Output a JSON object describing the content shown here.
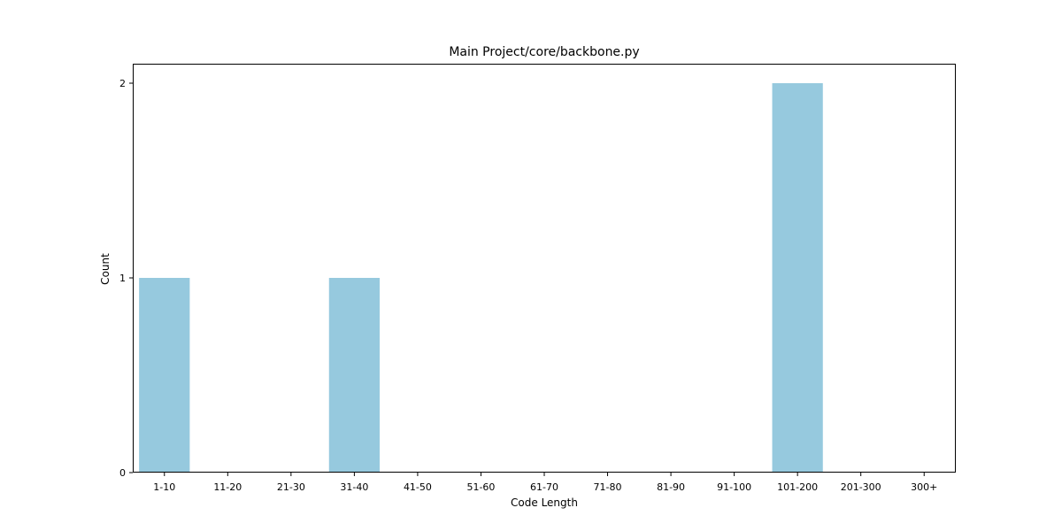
{
  "chart_data": {
    "type": "bar",
    "title": "Main Project/core/backbone.py",
    "xlabel": "Code Length",
    "ylabel": "Count",
    "categories": [
      "1-10",
      "11-20",
      "21-30",
      "31-40",
      "41-50",
      "51-60",
      "61-70",
      "71-80",
      "81-90",
      "91-100",
      "101-200",
      "201-300",
      "300+"
    ],
    "values": [
      1,
      0,
      0,
      1,
      0,
      0,
      0,
      0,
      0,
      0,
      2,
      0,
      0
    ],
    "yticks": [
      0,
      1,
      2
    ],
    "ylim": [
      0,
      2.1
    ],
    "grid": false,
    "legend": "none",
    "bar_color": "#96c9de"
  }
}
